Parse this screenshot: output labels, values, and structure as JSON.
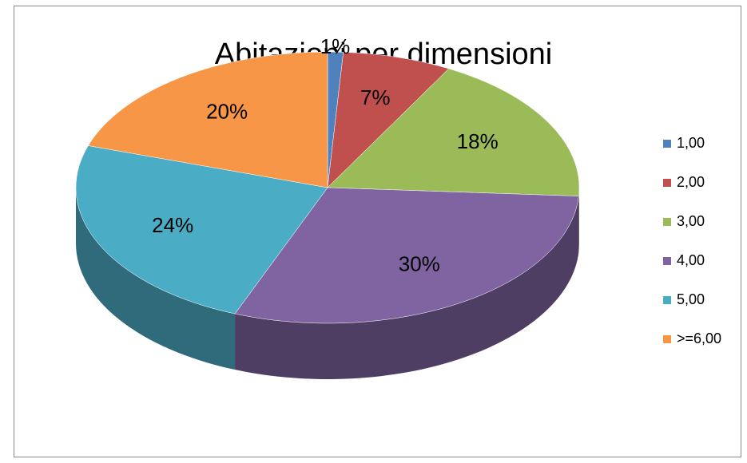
{
  "chart_data": {
    "type": "pie",
    "title": "Abitazioni per dimensioni",
    "categories": [
      "1,00",
      "2,00",
      "3,00",
      "4,00",
      "5,00",
      ">=6,00"
    ],
    "values": [
      1,
      7,
      18,
      30,
      24,
      20
    ],
    "value_labels": [
      "1%",
      "7%",
      "18%",
      "30%",
      "24%",
      "20%"
    ],
    "colors": [
      "#4f81bd",
      "#c0504d",
      "#9bbb59",
      "#8064a2",
      "#4bacc6",
      "#f79646"
    ],
    "legend": "right"
  }
}
